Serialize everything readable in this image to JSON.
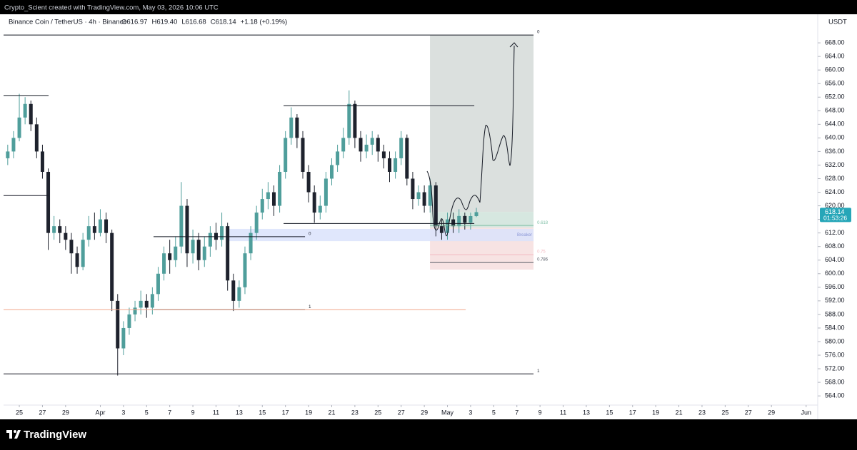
{
  "watermark": "Crypto_Scient created with TradingView.com, May 03, 2026 10:06 UTC",
  "brand": "TradingView",
  "chart_data": {
    "type": "candlestick",
    "symbol": "Binance Coin / TetherUS · 4h · Binance",
    "ohlc_text": [
      "O616.97",
      "H619.40",
      "L616.68",
      "C618.14",
      "+1.18 (+0.19%)"
    ],
    "currency": "USDT",
    "countdown": "01:53:26",
    "up_color": "#4f9e9b",
    "down_color": "#1e222d",
    "xlim": [
      -1.36,
      69
    ],
    "ylim": [
      561.3,
      671.8
    ],
    "xticks": [
      {
        "value": 0,
        "label": "25"
      },
      {
        "value": 2,
        "label": "27"
      },
      {
        "value": 4,
        "label": "29"
      },
      {
        "value": 7,
        "label": "Apr"
      },
      {
        "value": 9,
        "label": "3"
      },
      {
        "value": 11,
        "label": "5"
      },
      {
        "value": 13,
        "label": "7"
      },
      {
        "value": 15,
        "label": "9"
      },
      {
        "value": 17,
        "label": "11"
      },
      {
        "value": 19,
        "label": "13"
      },
      {
        "value": 21,
        "label": "15"
      },
      {
        "value": 23,
        "label": "17"
      },
      {
        "value": 25,
        "label": "19"
      },
      {
        "value": 27,
        "label": "21"
      },
      {
        "value": 29,
        "label": "23"
      },
      {
        "value": 31,
        "label": "25"
      },
      {
        "value": 33,
        "label": "27"
      },
      {
        "value": 35,
        "label": "29"
      },
      {
        "value": 37,
        "label": "May"
      },
      {
        "value": 39,
        "label": "3"
      },
      {
        "value": 41,
        "label": "5"
      },
      {
        "value": 43,
        "label": "7"
      },
      {
        "value": 45,
        "label": "9"
      },
      {
        "value": 47,
        "label": "11"
      },
      {
        "value": 49,
        "label": "13"
      },
      {
        "value": 51,
        "label": "15"
      },
      {
        "value": 53,
        "label": "17"
      },
      {
        "value": 55,
        "label": "19"
      },
      {
        "value": 57,
        "label": "21"
      },
      {
        "value": 59,
        "label": "23"
      },
      {
        "value": 61,
        "label": "25"
      },
      {
        "value": 63,
        "label": "27"
      },
      {
        "value": 65,
        "label": "29"
      },
      {
        "value": 68,
        "label": "Jun"
      }
    ],
    "yticks": [
      {
        "value": 564,
        "label": "564.00"
      },
      {
        "value": 568,
        "label": "568.00"
      },
      {
        "value": 572,
        "label": "572.00"
      },
      {
        "value": 576,
        "label": "576.00"
      },
      {
        "value": 580,
        "label": "580.00"
      },
      {
        "value": 584,
        "label": "584.00"
      },
      {
        "value": 588,
        "label": "588.00"
      },
      {
        "value": 592,
        "label": "592.00"
      },
      {
        "value": 596,
        "label": "596.00"
      },
      {
        "value": 600,
        "label": "600.00"
      },
      {
        "value": 604,
        "label": "604.00"
      },
      {
        "value": 608,
        "label": "608.00"
      },
      {
        "value": 612,
        "label": "612.00"
      },
      {
        "value": 616,
        "label": "616.00"
      },
      {
        "value": 620,
        "label": "620.00"
      },
      {
        "value": 624,
        "label": "624.00"
      },
      {
        "value": 628,
        "label": "628.00"
      },
      {
        "value": 632,
        "label": "632.00"
      },
      {
        "value": 636,
        "label": "636.00"
      },
      {
        "value": 640,
        "label": "640.00"
      },
      {
        "value": 644,
        "label": "644.00"
      },
      {
        "value": 648,
        "label": "648.00"
      },
      {
        "value": 652,
        "label": "652.00"
      },
      {
        "value": 656,
        "label": "656.00"
      },
      {
        "value": 660,
        "label": "660.00"
      },
      {
        "value": 664,
        "label": "664.00"
      },
      {
        "value": 668,
        "label": "668.00"
      }
    ],
    "x": [
      -1,
      -0.5,
      0,
      0.5,
      1,
      1.5,
      2,
      2.5,
      3,
      3.5,
      4,
      4.5,
      5,
      5.5,
      6,
      6.5,
      7,
      7.5,
      8,
      8.5,
      9,
      9.5,
      10,
      10.5,
      11,
      11.5,
      12,
      12.5,
      13,
      13.5,
      14,
      14.5,
      15,
      15.5,
      16,
      16.5,
      17,
      17.5,
      18,
      18.5,
      19,
      19.5,
      20,
      20.5,
      21,
      21.5,
      22,
      22.5,
      23,
      23.5,
      24,
      24.5,
      25,
      25.5,
      26,
      26.5,
      27,
      27.5,
      28,
      28.5,
      29,
      29.5,
      30,
      30.5,
      31,
      31.5,
      32,
      32.5,
      33,
      33.5,
      34,
      34.5,
      35,
      35.5,
      36,
      36.5,
      37,
      37.5,
      38,
      38.5,
      39,
      39.5
    ],
    "open": [
      634,
      636,
      640,
      646,
      650,
      644,
      636,
      630,
      612,
      614,
      612,
      610,
      606,
      602,
      610,
      614,
      612,
      616,
      612,
      592,
      578,
      584,
      588,
      590,
      592,
      590,
      594,
      600,
      606,
      604,
      608,
      620,
      606,
      610,
      604,
      608,
      612,
      610,
      614,
      598,
      592,
      596,
      606,
      612,
      618,
      622,
      624,
      620,
      630,
      640,
      646,
      640,
      630,
      624,
      618,
      620,
      628,
      632,
      636,
      640,
      650,
      640,
      636,
      638,
      640,
      636,
      634,
      630,
      634,
      640,
      628,
      622,
      624,
      620,
      626,
      614,
      612,
      616,
      614,
      617,
      615,
      616.97
    ],
    "high": [
      638,
      642,
      653,
      652,
      651,
      646,
      638,
      631,
      617,
      616,
      614,
      612,
      608,
      612,
      617,
      618,
      619,
      618,
      613,
      594,
      586,
      590,
      592,
      595,
      594,
      596,
      602,
      608,
      610,
      611,
      627,
      622,
      613,
      612,
      611,
      614,
      615,
      618,
      615,
      600,
      598,
      608,
      614,
      620,
      625,
      627,
      626,
      632,
      642,
      649,
      647,
      642,
      632,
      626,
      623,
      630,
      634,
      638,
      643,
      654,
      651,
      642,
      641,
      642,
      641,
      638,
      636,
      636,
      642,
      641,
      630,
      626,
      626,
      628,
      627,
      616,
      618,
      618,
      619,
      618,
      618,
      619.4
    ],
    "low": [
      632,
      634,
      639,
      644,
      642,
      634,
      628,
      607,
      610,
      609,
      607,
      600,
      600,
      601,
      608,
      610,
      611,
      609,
      589,
      570,
      576,
      582,
      586,
      588,
      587,
      588,
      592,
      598,
      600,
      602,
      606,
      602,
      603,
      601,
      602,
      605,
      607,
      608,
      595,
      589,
      590,
      594,
      604,
      610,
      616,
      619,
      617,
      618,
      628,
      638,
      637,
      628,
      621,
      615,
      616,
      618,
      626,
      630,
      634,
      638,
      637,
      633,
      634,
      635,
      633,
      631,
      627,
      628,
      632,
      626,
      619,
      620,
      618,
      618,
      611,
      610,
      610,
      612,
      612,
      613,
      613,
      616.68
    ],
    "close": [
      636,
      640,
      646,
      650,
      644,
      636,
      630,
      612,
      614,
      612,
      610,
      606,
      602,
      610,
      614,
      612,
      616,
      612,
      592,
      578,
      584,
      588,
      590,
      592,
      590,
      594,
      600,
      606,
      604,
      608,
      620,
      606,
      610,
      604,
      608,
      612,
      610,
      614,
      598,
      592,
      596,
      606,
      612,
      618,
      622,
      624,
      620,
      630,
      640,
      646,
      640,
      630,
      624,
      618,
      620,
      628,
      632,
      636,
      640,
      650,
      640,
      636,
      638,
      640,
      636,
      634,
      630,
      634,
      640,
      628,
      622,
      624,
      620,
      626,
      614,
      612,
      616,
      614,
      617,
      615,
      616.97,
      618.14
    ],
    "zones": [
      {
        "x": [
          35.49,
          44.44
        ],
        "y": [
          618.2,
          670.3
        ],
        "color": "#d5dbd8"
      },
      {
        "x": [
          35.49,
          44.44
        ],
        "y": [
          613.6,
          618.2
        ],
        "color": "#cfe3da"
      },
      {
        "x": [
          35.49,
          44.44
        ],
        "y": [
          601.2,
          613.6
        ],
        "color": "#f6dede"
      },
      {
        "x": [
          18.0,
          44.44
        ],
        "y": [
          609.6,
          613.2
        ],
        "color": "#dbe3fb",
        "label": "Breaker",
        "label_color": "#8a96d6"
      }
    ],
    "levels": [
      {
        "x": [
          -1.36,
          44.44
        ],
        "y": 670.3,
        "color": "#131722",
        "label": "0"
      },
      {
        "x": [
          -1.36,
          44.44
        ],
        "y": 570.5,
        "color": "#131722",
        "label": "1"
      },
      {
        "x": [
          -1.36,
          2.53
        ],
        "y": 652.5,
        "color": "#131722"
      },
      {
        "x": [
          -1.36,
          2.53
        ],
        "y": 623.0,
        "color": "#131722"
      },
      {
        "x": [
          22.84,
          39.32
        ],
        "y": 649.5,
        "color": "#131722"
      },
      {
        "x": [
          22.84,
          39.32
        ],
        "y": 614.8,
        "color": "#131722"
      },
      {
        "x": [
          11.6,
          24.69
        ],
        "y": 610.9,
        "color": "#131722",
        "label": "0"
      },
      {
        "x": [
          11.6,
          24.69
        ],
        "y": 589.4,
        "color": "#131722",
        "label": "1"
      },
      {
        "x": [
          -1.36,
          38.58
        ],
        "y": 589.4,
        "color": "#f0a58a"
      },
      {
        "x": [
          35.49,
          44.44
        ],
        "y": 614.2,
        "color": "#7fbfa6",
        "label": "0.618"
      },
      {
        "x": [
          35.49,
          44.44
        ],
        "y": 605.6,
        "color": "#f2b8c0",
        "label": "0.75"
      },
      {
        "x": [
          35.49,
          44.44
        ],
        "y": 603.3,
        "color": "#555b66",
        "label": "0.786"
      }
    ]
  }
}
